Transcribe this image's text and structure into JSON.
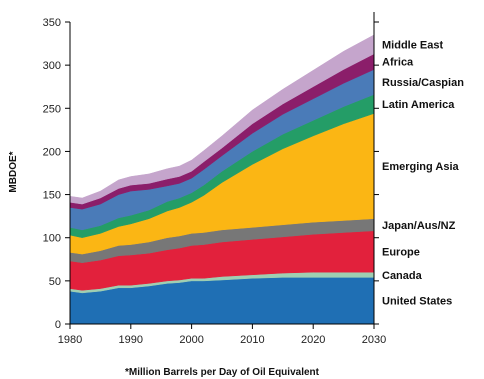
{
  "chart_data": {
    "type": "area",
    "stacked": true,
    "ylabel": "MBDOE*",
    "xlabel": "",
    "footnote": "*Million Barrels per Day of Oil Equivalent",
    "xlim": [
      1980,
      2030
    ],
    "ylim": [
      0,
      350
    ],
    "xticks": [
      1980,
      1990,
      2000,
      2010,
      2020,
      2030
    ],
    "yticks": [
      0,
      50,
      100,
      150,
      200,
      250,
      300,
      350
    ],
    "x": [
      1980,
      1982,
      1985,
      1988,
      1990,
      1993,
      1996,
      1998,
      2000,
      2002,
      2005,
      2010,
      2015,
      2020,
      2025,
      2030
    ],
    "series": [
      {
        "name": "United States",
        "color": "#1f6fb4",
        "values": [
          38,
          36,
          38,
          42,
          42,
          44,
          47,
          48,
          50,
          50,
          51,
          53,
          54,
          54,
          54,
          54
        ]
      },
      {
        "name": "Canada",
        "color": "#9fcfb2",
        "values": [
          3,
          3,
          3,
          3,
          3,
          3,
          3,
          3,
          3,
          3,
          4,
          4,
          5,
          6,
          6,
          6
        ]
      },
      {
        "name": "Europe",
        "color": "#e2213c",
        "values": [
          32,
          32,
          33,
          34,
          35,
          35,
          36,
          37,
          38,
          39,
          40,
          41,
          42,
          44,
          46,
          48
        ]
      },
      {
        "name": "Japan/Aus/NZ",
        "color": "#777777",
        "values": [
          10,
          10,
          11,
          12,
          12,
          13,
          14,
          14,
          14,
          14,
          14,
          14,
          14,
          14,
          14,
          14
        ]
      },
      {
        "name": "Emerging Asia",
        "color": "#fbb614",
        "values": [
          20,
          19,
          20,
          22,
          24,
          27,
          31,
          33,
          36,
          43,
          55,
          73,
          88,
          100,
          112,
          122
        ]
      },
      {
        "name": "Latin America",
        "color": "#249d67",
        "values": [
          9,
          9,
          9,
          10,
          10,
          10,
          11,
          11,
          11,
          12,
          13,
          15,
          17,
          18,
          20,
          22
        ]
      },
      {
        "name": "Russia/Caspian",
        "color": "#4a7bb8",
        "values": [
          23,
          24,
          25,
          27,
          28,
          24,
          18,
          17,
          17,
          18,
          18,
          21,
          23,
          25,
          27,
          29
        ]
      },
      {
        "name": "Africa",
        "color": "#8b1e6a",
        "values": [
          6,
          6,
          7,
          7,
          7,
          7,
          8,
          8,
          8,
          9,
          9,
          11,
          12,
          14,
          16,
          18
        ]
      },
      {
        "name": "Middle East",
        "color": "#c5a5cc",
        "values": [
          7,
          7,
          8,
          10,
          10,
          11,
          12,
          12,
          13,
          13,
          14,
          16,
          17,
          19,
          21,
          22
        ]
      }
    ]
  }
}
